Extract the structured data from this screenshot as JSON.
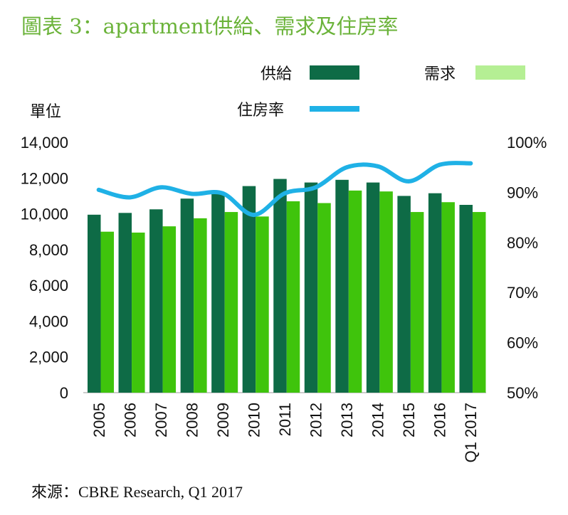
{
  "title": "圖表 3：apartment供給、需求及住房率",
  "source": "來源：CBRE Research, Q1 2017",
  "colors": {
    "supply": "#0e6b46",
    "demand": "#3fc40c",
    "demand_legend": "#b5ef94",
    "occupancy": "#1fb1e6",
    "title": "#6bb33a"
  },
  "chart_data": {
    "type": "bar",
    "title": "圖表 3：apartment供給、需求及住房率",
    "ylabel": "單位",
    "ylim": [
      0,
      14000
    ],
    "y2lim": [
      50,
      100
    ],
    "yticks": [
      "0",
      "2,000",
      "4,000",
      "6,000",
      "8,000",
      "10,000",
      "12,000",
      "14,000"
    ],
    "y2ticks": [
      "50%",
      "60%",
      "70%",
      "80%",
      "90%",
      "100%"
    ],
    "categories": [
      "2005",
      "2006",
      "2007",
      "2008",
      "2009",
      "2010",
      "2011",
      "2012",
      "2013",
      "2014",
      "2015",
      "2016",
      "Q1 2017"
    ],
    "series": [
      {
        "name": "供給",
        "type": "bar",
        "axis": "left",
        "values": [
          9950,
          10050,
          10250,
          10850,
          11200,
          11550,
          11950,
          11750,
          11900,
          11750,
          11000,
          11150,
          10500
        ]
      },
      {
        "name": "需求",
        "type": "bar",
        "axis": "left",
        "values": [
          9000,
          8950,
          9300,
          9750,
          10100,
          9850,
          10700,
          10600,
          11300,
          11250,
          10100,
          10650,
          10100
        ]
      },
      {
        "name": "住房率",
        "type": "line",
        "axis": "right",
        "values": [
          90.5,
          89,
          91,
          89.7,
          89.8,
          85.5,
          89.8,
          91,
          95,
          95.2,
          92.2,
          95.5,
          95.8
        ]
      }
    ],
    "legend": "top",
    "grid": false
  }
}
